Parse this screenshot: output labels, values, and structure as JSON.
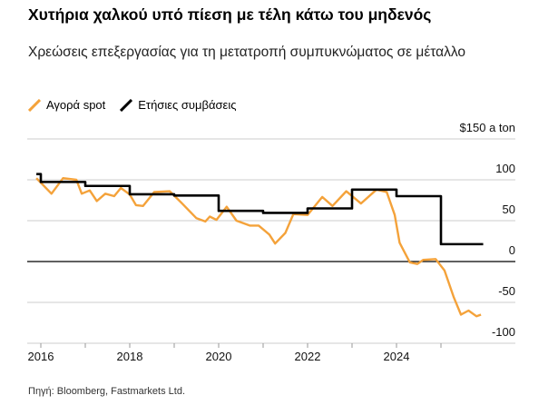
{
  "title": "Χυτήρια χαλκού υπό πίεση με τέλη κάτω του μηδενός",
  "subtitle": "Χρεώσεις επεξεργασίας για τη μετατροπή συμπυκνώματος σε μέταλλο",
  "source": "Πηγή: Bloomberg, Fastmarkets Ltd.",
  "chart_data": {
    "type": "line",
    "ylabel_unit": "$150 a ton",
    "ylim": [
      -100,
      150
    ],
    "xlim": [
      2015.7,
      2026.7
    ],
    "yticks": [
      100,
      50,
      0,
      -50,
      -100
    ],
    "xtick_labels": [
      "2016",
      "2018",
      "2020",
      "2022",
      "2024"
    ],
    "grid": true,
    "legend_placement": "top-left",
    "series": [
      {
        "name": "Αγορά spot",
        "color": "#f4a23a",
        "step": false,
        "points": [
          [
            2015.9,
            102
          ],
          [
            2016.24,
            83
          ],
          [
            2016.5,
            102
          ],
          [
            2016.8,
            100
          ],
          [
            2016.92,
            83
          ],
          [
            2017.1,
            87
          ],
          [
            2017.26,
            74
          ],
          [
            2017.45,
            83
          ],
          [
            2017.65,
            80
          ],
          [
            2017.8,
            90
          ],
          [
            2018.0,
            82
          ],
          [
            2018.14,
            69
          ],
          [
            2018.3,
            68
          ],
          [
            2018.55,
            85
          ],
          [
            2018.9,
            86
          ],
          [
            2019.16,
            72
          ],
          [
            2019.5,
            53
          ],
          [
            2019.7,
            49
          ],
          [
            2019.8,
            55
          ],
          [
            2019.95,
            51
          ],
          [
            2020.18,
            67
          ],
          [
            2020.4,
            50
          ],
          [
            2020.7,
            44
          ],
          [
            2020.9,
            44
          ],
          [
            2021.14,
            33
          ],
          [
            2021.27,
            22
          ],
          [
            2021.5,
            35
          ],
          [
            2021.68,
            58
          ],
          [
            2022.0,
            57
          ],
          [
            2022.33,
            79
          ],
          [
            2022.56,
            68
          ],
          [
            2022.87,
            86
          ],
          [
            2023.2,
            71
          ],
          [
            2023.55,
            88
          ],
          [
            2023.78,
            85
          ],
          [
            2023.96,
            57
          ],
          [
            2024.07,
            23
          ],
          [
            2024.3,
            -1
          ],
          [
            2024.47,
            -3
          ],
          [
            2024.6,
            2
          ],
          [
            2024.88,
            3
          ],
          [
            2025.08,
            -11
          ],
          [
            2025.29,
            -44
          ],
          [
            2025.45,
            -65
          ],
          [
            2025.62,
            -60
          ],
          [
            2025.8,
            -67
          ],
          [
            2025.9,
            -65
          ]
        ]
      },
      {
        "name": "Ετήσιες συμβάσεις",
        "color": "#000000",
        "step": true,
        "points": [
          [
            2015.9,
            107
          ],
          [
            2016.0,
            97.35
          ],
          [
            2017.0,
            92.5
          ],
          [
            2018.0,
            82.25
          ],
          [
            2019.0,
            80.8
          ],
          [
            2020.0,
            62
          ],
          [
            2021.0,
            59.5
          ],
          [
            2022.0,
            65
          ],
          [
            2023.0,
            88
          ],
          [
            2024.0,
            80
          ],
          [
            2025.0,
            21.25
          ],
          [
            2025.95,
            21.25
          ]
        ]
      }
    ]
  }
}
